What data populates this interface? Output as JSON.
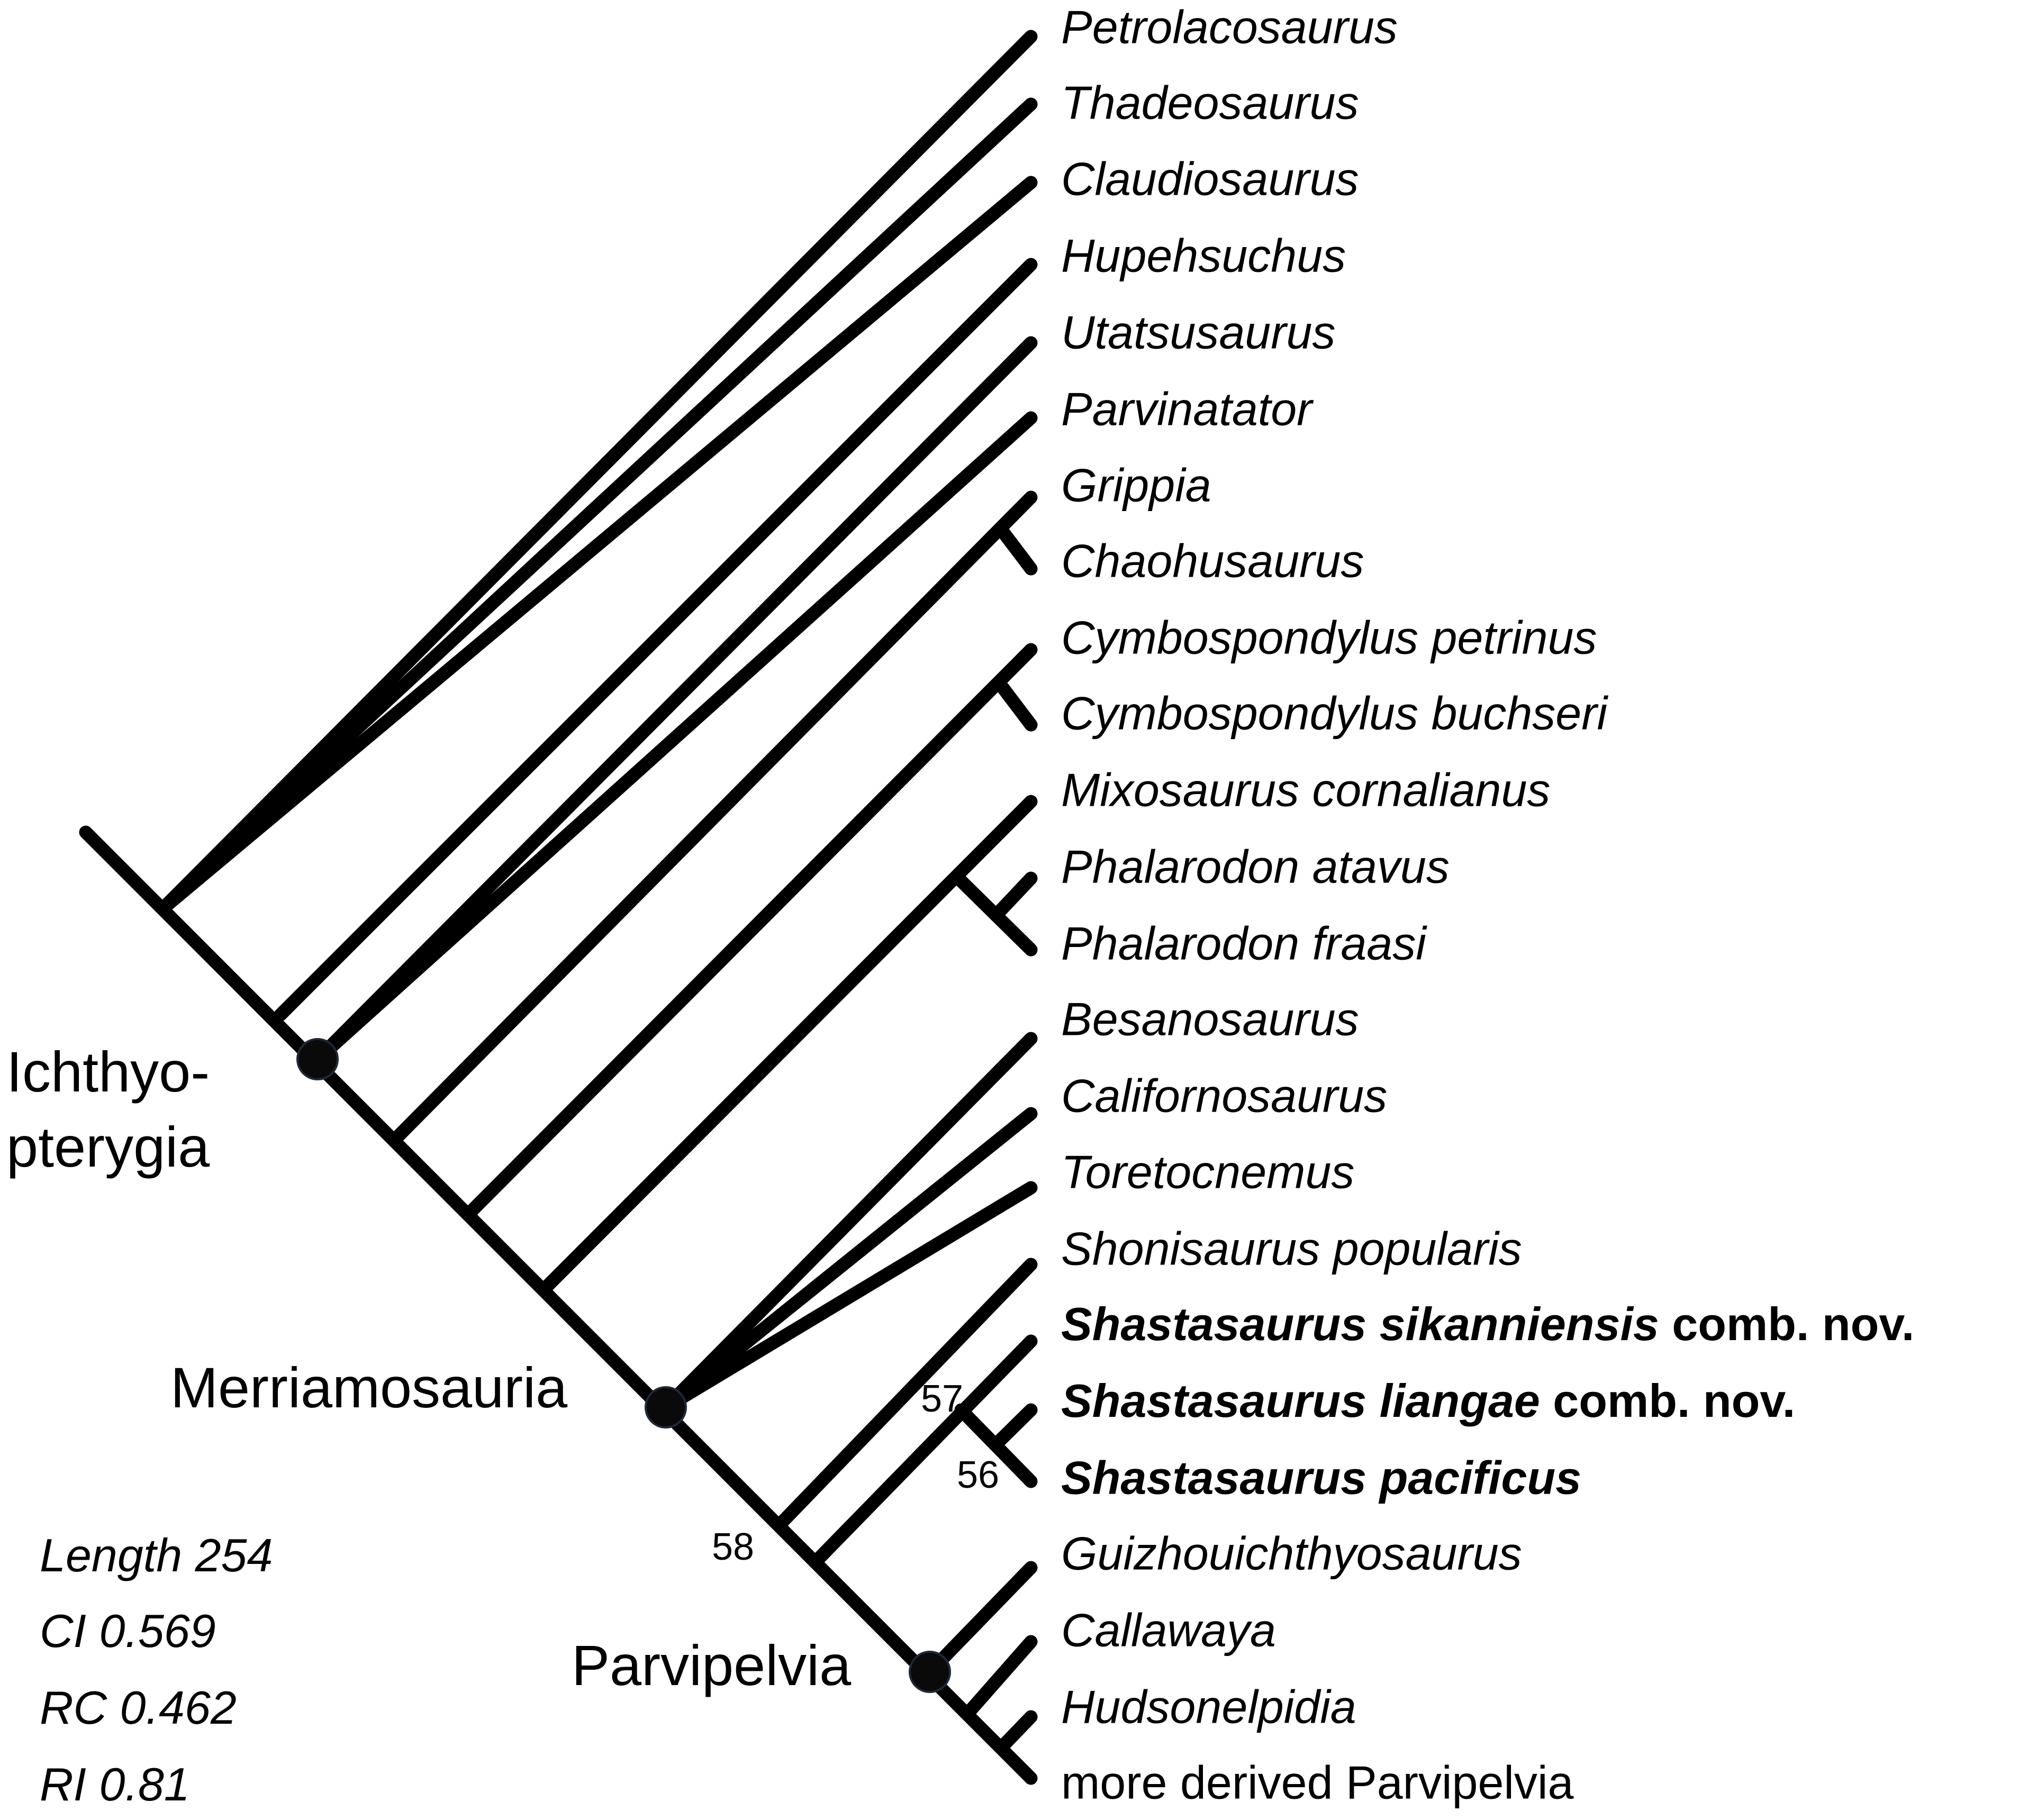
{
  "taxa": [
    {
      "name": "Petrolacosaurus",
      "style": "italic"
    },
    {
      "name": "Thadeosaurus",
      "style": "italic"
    },
    {
      "name": "Claudiosaurus",
      "style": "italic"
    },
    {
      "name": "Hupehsuchus",
      "style": "italic"
    },
    {
      "name": "Utatsusaurus",
      "style": "italic"
    },
    {
      "name": "Parvinatator",
      "style": "italic"
    },
    {
      "name": "Grippia",
      "style": "italic"
    },
    {
      "name": "Chaohusaurus",
      "style": "italic"
    },
    {
      "name": "Cymbospondylus petrinus",
      "style": "italic"
    },
    {
      "name": "Cymbospondylus buchseri",
      "style": "italic"
    },
    {
      "name": "Mixosaurus cornalianus",
      "style": "italic"
    },
    {
      "name": "Phalarodon atavus",
      "style": "italic"
    },
    {
      "name": "Phalarodon fraasi",
      "style": "italic"
    },
    {
      "name": "Besanosaurus",
      "style": "italic"
    },
    {
      "name": "Californosaurus",
      "style": "italic"
    },
    {
      "name": "Toretocnemus",
      "style": "italic"
    },
    {
      "name": "Shonisaurus popularis",
      "style": "italic"
    },
    {
      "name": "Shastasaurus sikanniensis",
      "style": "bold-italic",
      "suffix": " comb. nov."
    },
    {
      "name": "Shastasaurus liangae",
      "style": "bold-italic",
      "suffix": " comb. nov."
    },
    {
      "name": "Shastasaurus pacificus",
      "style": "bold-italic"
    },
    {
      "name": "Guizhouichthyosaurus",
      "style": "italic"
    },
    {
      "name": "Callawaya",
      "style": "italic"
    },
    {
      "name": "Hudsonelpidia",
      "style": "italic"
    },
    {
      "name": "more derived Parvipelvia",
      "style": "normal"
    }
  ],
  "clades": {
    "ichthyopterygia_line1": "Ichthyo-",
    "ichthyopterygia_line2": "pterygia",
    "merriamosauria": "Merriamosauria",
    "parvipelvia": "Parvipelvia"
  },
  "support_values": {
    "shastasaurus_clade": "57",
    "liangae_pacificus": "56",
    "shonisaurus_shastasaurus": "58"
  },
  "stats": {
    "length": "Length 254",
    "ci": "CI 0.569",
    "rc": "RC 0.462",
    "ri": "RI 0.81"
  },
  "colors": {
    "lines": "#000000",
    "node_dot": "#0a0a0a"
  }
}
